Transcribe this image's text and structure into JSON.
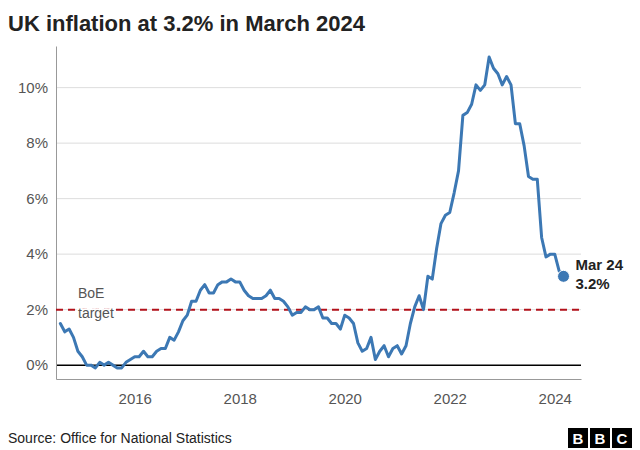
{
  "chart_data": {
    "type": "line",
    "title": "UK inflation at 3.2% in March 2024",
    "source": "Source: Office for National Statistics",
    "logo": "BBC",
    "color": "#3c78b4",
    "grid": true,
    "x": [
      2014.583,
      2014.667,
      2014.75,
      2014.833,
      2014.917,
      2015.0,
      2015.083,
      2015.167,
      2015.25,
      2015.333,
      2015.417,
      2015.5,
      2015.583,
      2015.667,
      2015.75,
      2015.833,
      2015.917,
      2016.0,
      2016.083,
      2016.167,
      2016.25,
      2016.333,
      2016.417,
      2016.5,
      2016.583,
      2016.667,
      2016.75,
      2016.833,
      2016.917,
      2017.0,
      2017.083,
      2017.167,
      2017.25,
      2017.333,
      2017.417,
      2017.5,
      2017.583,
      2017.667,
      2017.75,
      2017.833,
      2017.917,
      2018.0,
      2018.083,
      2018.167,
      2018.25,
      2018.333,
      2018.417,
      2018.5,
      2018.583,
      2018.667,
      2018.75,
      2018.833,
      2018.917,
      2019.0,
      2019.083,
      2019.167,
      2019.25,
      2019.333,
      2019.417,
      2019.5,
      2019.583,
      2019.667,
      2019.75,
      2019.833,
      2019.917,
      2020.0,
      2020.083,
      2020.167,
      2020.25,
      2020.333,
      2020.417,
      2020.5,
      2020.583,
      2020.667,
      2020.75,
      2020.833,
      2020.917,
      2021.0,
      2021.083,
      2021.167,
      2021.25,
      2021.333,
      2021.417,
      2021.5,
      2021.583,
      2021.667,
      2021.75,
      2021.833,
      2021.917,
      2022.0,
      2022.083,
      2022.167,
      2022.25,
      2022.333,
      2022.417,
      2022.5,
      2022.583,
      2022.667,
      2022.75,
      2022.833,
      2022.917,
      2023.0,
      2023.083,
      2023.167,
      2023.25,
      2023.333,
      2023.417,
      2023.5,
      2023.583,
      2023.667,
      2023.75,
      2023.833,
      2023.917,
      2024.0,
      2024.083,
      2024.167
    ],
    "values": [
      1.5,
      1.2,
      1.3,
      1.0,
      0.5,
      0.3,
      0.0,
      0.0,
      -0.1,
      0.1,
      0.0,
      0.1,
      0.0,
      -0.1,
      -0.1,
      0.1,
      0.2,
      0.3,
      0.3,
      0.5,
      0.3,
      0.3,
      0.5,
      0.6,
      0.6,
      1.0,
      0.9,
      1.2,
      1.6,
      1.8,
      2.3,
      2.3,
      2.7,
      2.9,
      2.6,
      2.6,
      2.9,
      3.0,
      3.0,
      3.1,
      3.0,
      3.0,
      2.7,
      2.5,
      2.4,
      2.4,
      2.4,
      2.5,
      2.7,
      2.4,
      2.4,
      2.3,
      2.1,
      1.8,
      1.9,
      1.9,
      2.1,
      2.0,
      2.0,
      2.1,
      1.7,
      1.7,
      1.5,
      1.5,
      1.3,
      1.8,
      1.7,
      1.5,
      0.8,
      0.5,
      0.6,
      1.0,
      0.2,
      0.5,
      0.7,
      0.3,
      0.6,
      0.7,
      0.4,
      0.7,
      1.5,
      2.1,
      2.5,
      2.0,
      3.2,
      3.1,
      4.2,
      5.1,
      5.4,
      5.5,
      6.2,
      7.0,
      9.0,
      9.1,
      9.4,
      10.1,
      9.9,
      10.1,
      11.1,
      10.7,
      10.5,
      10.1,
      10.4,
      10.1,
      8.7,
      8.7,
      7.9,
      6.8,
      6.7,
      6.7,
      4.6,
      3.9,
      4.0,
      4.0,
      3.4,
      3.2
    ],
    "xlim": [
      2014.5,
      2024.5
    ],
    "xticks": [
      2016,
      2018,
      2020,
      2022,
      2024
    ],
    "ylim": [
      -0.5,
      11.5
    ],
    "yticks": [
      {
        "value": 0,
        "label": "0%"
      },
      {
        "value": 2,
        "label": "2%"
      },
      {
        "value": 4,
        "label": "4%"
      },
      {
        "value": 6,
        "label": "6%"
      },
      {
        "value": 8,
        "label": "8%"
      },
      {
        "value": 10,
        "label": "10%"
      }
    ],
    "reference_line": {
      "y": 2,
      "label": "BoE target",
      "color": "#b3121b",
      "line_style": "dashed"
    },
    "annotation": {
      "x": 2024.167,
      "y": 3.2,
      "labels": [
        "Mar 24",
        "3.2%"
      ]
    }
  }
}
